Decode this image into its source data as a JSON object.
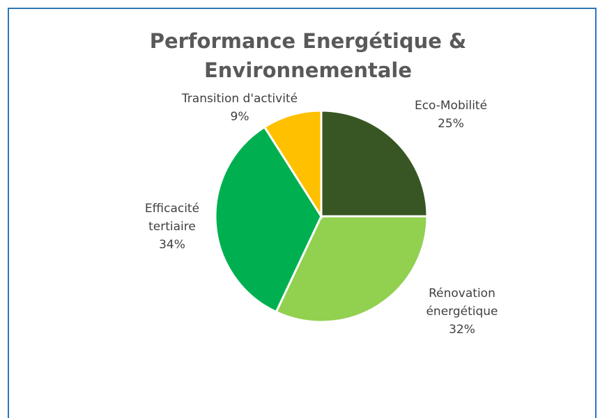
{
  "chart_data": {
    "type": "pie",
    "title": "Performance Energétique & Environnementale",
    "categories": [
      "Eco-Mobilité",
      "Rénovation énergétique",
      "Efficacité tertiaire",
      "Transition d'activité"
    ],
    "values": [
      25,
      32,
      34,
      9
    ],
    "value_labels": [
      "25%",
      "32%",
      "34%",
      "9%"
    ],
    "colors": [
      "#375623",
      "#92d050",
      "#00b050",
      "#ffc000"
    ]
  }
}
